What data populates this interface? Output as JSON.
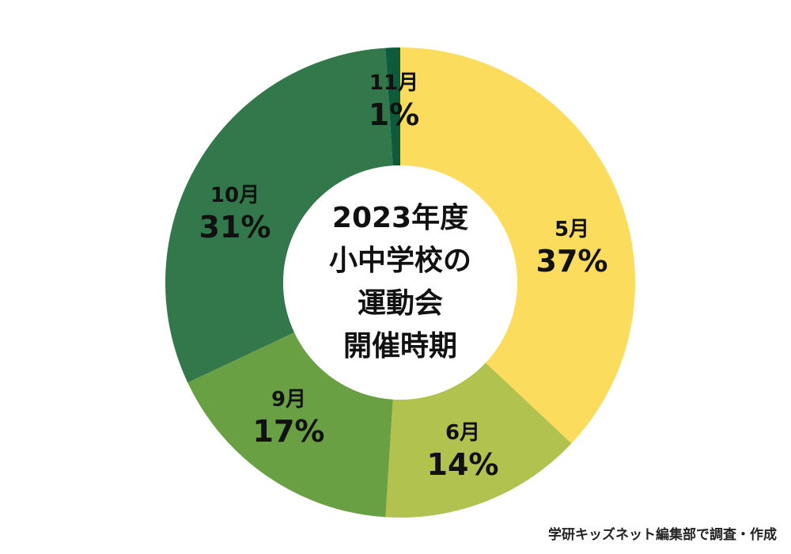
{
  "chart_data": {
    "type": "pie",
    "variant": "donut",
    "categories": [
      "5月",
      "6月",
      "9月",
      "10月",
      "11月"
    ],
    "values": [
      37,
      14,
      17,
      31,
      1
    ],
    "labels": [
      "37%",
      "14%",
      "17%",
      "31%",
      "1%"
    ],
    "colors": [
      "#fcdc5c",
      "#b1c24e",
      "#69a044",
      "#33784a",
      "#0d5a3c"
    ],
    "title_lines": [
      "2023年度",
      "小中学校の",
      "運動会",
      "開催時期"
    ],
    "legend": "none"
  },
  "source_note": "学研キッズネット編集部で調査・作成"
}
